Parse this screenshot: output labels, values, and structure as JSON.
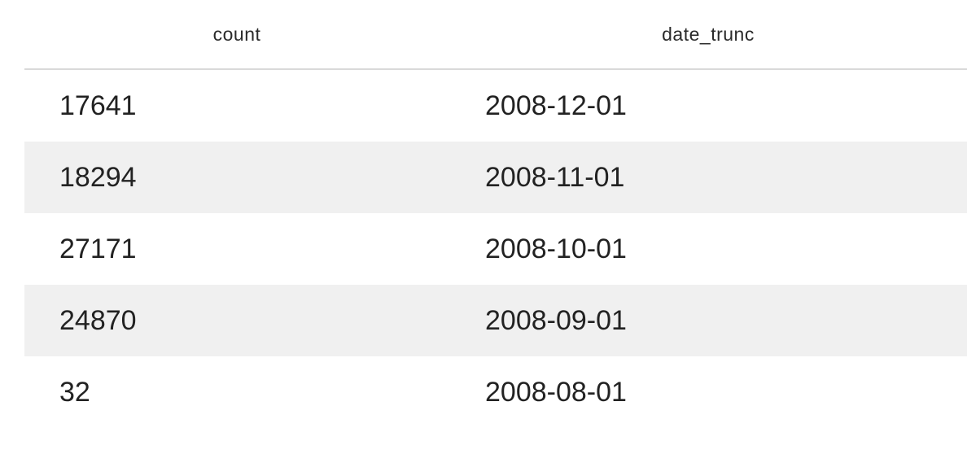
{
  "table": {
    "columns": [
      "count",
      "date_trunc"
    ],
    "rows": [
      {
        "count": "17641",
        "date_trunc": "2008-12-01"
      },
      {
        "count": "18294",
        "date_trunc": "2008-11-01"
      },
      {
        "count": "27171",
        "date_trunc": "2008-10-01"
      },
      {
        "count": "24870",
        "date_trunc": "2008-09-01"
      },
      {
        "count": "32",
        "date_trunc": "2008-08-01"
      }
    ],
    "striped_row_color": "#f0f0f0"
  }
}
